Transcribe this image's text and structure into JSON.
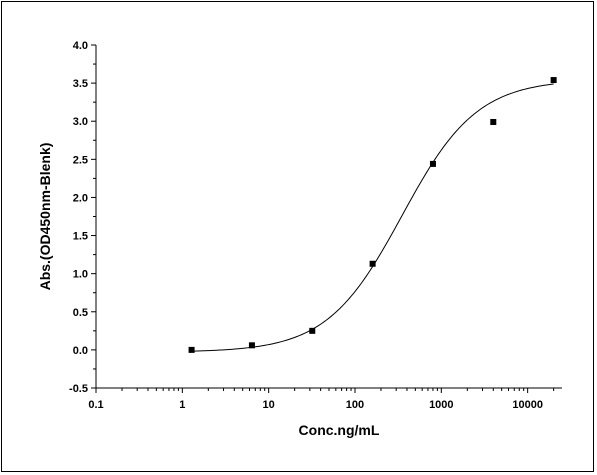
{
  "chart_data": {
    "type": "scatter",
    "xlabel": "Conc.ng/mL",
    "ylabel": "Abs.(OD450nm-Blenk)",
    "x_scale": "log",
    "xlim": [
      0.1,
      25000
    ],
    "ylim": [
      -0.5,
      4.0
    ],
    "x_ticks": [
      {
        "value": 0.1,
        "label": "0.1"
      },
      {
        "value": 1,
        "label": "1"
      },
      {
        "value": 10,
        "label": "10"
      },
      {
        "value": 100,
        "label": "100"
      },
      {
        "value": 1000,
        "label": "1000"
      },
      {
        "value": 10000,
        "label": "10000"
      }
    ],
    "y_ticks": [
      {
        "value": -0.5,
        "label": "-0.5"
      },
      {
        "value": 0.0,
        "label": "0.0"
      },
      {
        "value": 0.5,
        "label": "0.5"
      },
      {
        "value": 1.0,
        "label": "1.0"
      },
      {
        "value": 1.5,
        "label": "1.5"
      },
      {
        "value": 2.0,
        "label": "2.0"
      },
      {
        "value": 2.5,
        "label": "2.5"
      },
      {
        "value": 3.0,
        "label": "3.0"
      },
      {
        "value": 3.5,
        "label": "3.5"
      },
      {
        "value": 4.0,
        "label": "4.0"
      }
    ],
    "points": [
      {
        "x": 1.28,
        "y": 0.0
      },
      {
        "x": 6.4,
        "y": 0.06
      },
      {
        "x": 32,
        "y": 0.25
      },
      {
        "x": 160,
        "y": 1.13
      },
      {
        "x": 800,
        "y": 2.44
      },
      {
        "x": 4000,
        "y": 2.99
      },
      {
        "x": 20000,
        "y": 3.54
      }
    ],
    "fit_curve": {
      "type": "4-parameter logistic",
      "bottom": -0.03,
      "top": 3.55,
      "ec50": 350,
      "hill": 1.0,
      "x_range": [
        1.2,
        20000
      ]
    },
    "grid": false,
    "legend": "none",
    "colors": {
      "marker": "#000000",
      "line": "#000000",
      "axis": "#000000"
    }
  }
}
